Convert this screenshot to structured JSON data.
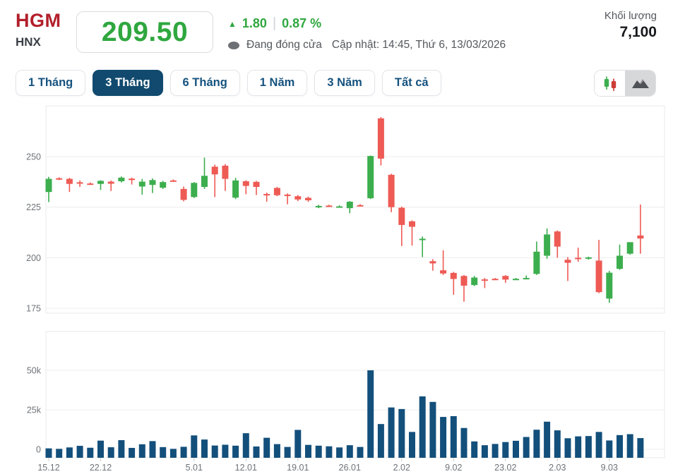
{
  "header": {
    "symbol": "HGM",
    "exchange": "HNX",
    "price": "209.50",
    "change_arrow": "▲",
    "change_value": "1.80",
    "change_divider": "|",
    "change_percent": "0.87 %",
    "market_status": "Đang đóng cửa",
    "updated": "Cập nhật: 14:45, Thứ 6, 13/03/2026",
    "volume_label": "Khối lượng",
    "volume_value": "7,100"
  },
  "range_tabs": {
    "items": [
      {
        "label": "1 Tháng",
        "active": false
      },
      {
        "label": "3 Tháng",
        "active": true
      },
      {
        "label": "6 Tháng",
        "active": false
      },
      {
        "label": "1 Năm",
        "active": false
      },
      {
        "label": "3 Năm",
        "active": false
      },
      {
        "label": "Tất cả",
        "active": false
      }
    ]
  },
  "chart_toggle": {
    "options": [
      "candlestick",
      "area"
    ],
    "highlighted": "area",
    "icons": [
      "candlestick-icon",
      "area-chart-icon"
    ]
  },
  "colors": {
    "up_green": "#3cae4e",
    "down_red": "#ee5a54",
    "volume_bar": "#134f7b",
    "accent_navy": "#114a6e",
    "symbol_red": "#b21f2b",
    "price_green": "#2fa73f",
    "muted_text": "#53575c",
    "grid_line": "#eeeeee",
    "plot_border": "#e8e8e8"
  },
  "chart_data": {
    "type": "candlestick",
    "title": "",
    "price_axis": {
      "tick_values": [
        250,
        225,
        200,
        175
      ],
      "tick_labels": [
        "250",
        "225",
        "200",
        "175"
      ],
      "range_shown": [
        177,
        270
      ]
    },
    "volume_axis": {
      "tick_values": [
        50000,
        25000,
        0
      ],
      "tick_labels": [
        "50k",
        "25k",
        "0"
      ]
    },
    "x_tick_labels": [
      "15.12",
      "22.12",
      "5.01",
      "12.01",
      "19.01",
      "26.01",
      "2.02",
      "9.02",
      "23.02",
      "2.03",
      "9.03"
    ],
    "x_tick_indices": [
      0,
      5,
      14,
      19,
      24,
      29,
      34,
      39,
      44,
      49,
      54
    ],
    "grid": true,
    "legend": false,
    "candles_ohlc": [
      [
        232.5,
        240,
        227.5,
        239
      ],
      [
        239.3,
        239.8,
        238.4,
        238.9
      ],
      [
        239,
        239.5,
        232.5,
        236.5
      ],
      [
        237.3,
        238.2,
        235,
        236.8
      ],
      [
        236.7,
        237.2,
        236,
        236.4
      ],
      [
        236.5,
        238.3,
        233.5,
        238
      ],
      [
        237.6,
        238.2,
        233,
        236.6
      ],
      [
        237.8,
        240.2,
        237.2,
        239.6
      ],
      [
        239.1,
        239.6,
        236.2,
        238.8
      ],
      [
        235.2,
        239,
        231.2,
        237.6
      ],
      [
        236,
        239.2,
        232,
        238.4
      ],
      [
        234.6,
        238,
        234,
        237.4
      ],
      [
        238.2,
        238.7,
        237.6,
        237.9
      ],
      [
        234,
        235.2,
        227.9,
        228.6
      ],
      [
        230,
        237.4,
        229.5,
        237
      ],
      [
        235,
        249.5,
        234,
        240.5
      ],
      [
        245,
        246,
        230,
        241.2
      ],
      [
        245.5,
        246.3,
        233,
        239
      ],
      [
        229.7,
        239.5,
        229,
        238.2
      ],
      [
        237.8,
        238.3,
        231.4,
        235.5
      ],
      [
        237.5,
        238,
        231,
        235
      ],
      [
        231.5,
        232.2,
        227.7,
        231.2
      ],
      [
        234.5,
        235,
        230.4,
        230.9
      ],
      [
        231.2,
        231.8,
        226.4,
        230.8
      ],
      [
        230.4,
        231,
        228,
        228.8
      ],
      [
        229.6,
        230.2,
        227.6,
        228.4
      ],
      [
        225.2,
        226.2,
        224.5,
        225.6
      ],
      [
        225.8,
        226.2,
        225.2,
        225.5
      ],
      [
        225.3,
        225.9,
        224.8,
        225.4
      ],
      [
        224.5,
        228,
        222,
        227.7
      ],
      [
        226,
        226.5,
        225.3,
        225.8
      ],
      [
        229.4,
        250.5,
        229,
        250.3
      ],
      [
        268.9,
        269.5,
        245.6,
        249
      ],
      [
        241,
        241.5,
        222.5,
        225
      ],
      [
        224.7,
        225.3,
        205.8,
        216.2
      ],
      [
        218,
        218.5,
        206,
        215.3
      ],
      [
        209,
        210.5,
        200.3,
        209.4
      ],
      [
        198.3,
        199.3,
        193.6,
        197.2
      ],
      [
        193.8,
        203.7,
        191.5,
        192.2
      ],
      [
        192.5,
        193,
        181.7,
        189.5
      ],
      [
        191,
        191.5,
        178.3,
        186.2
      ],
      [
        186.5,
        191,
        186,
        190.2
      ],
      [
        189.3,
        190,
        185,
        189
      ],
      [
        189.6,
        190,
        189.2,
        189.5
      ],
      [
        191,
        191.4,
        187.6,
        189.2
      ],
      [
        189.3,
        190,
        189,
        189.6
      ],
      [
        189.7,
        191.2,
        189.3,
        190
      ],
      [
        192,
        208,
        191.5,
        203
      ],
      [
        201,
        214.5,
        199.5,
        211.5
      ],
      [
        213,
        213.5,
        200,
        205.5
      ],
      [
        199,
        200.3,
        188.5,
        197.5
      ],
      [
        200,
        205,
        198,
        199.7
      ],
      [
        199.8,
        200.5,
        199,
        200.2
      ],
      [
        198.6,
        208.8,
        182.5,
        183
      ],
      [
        179.8,
        193.5,
        177.7,
        192.6
      ],
      [
        194.5,
        206.5,
        194,
        201
      ],
      [
        202,
        207.7,
        201.5,
        207.7
      ],
      [
        211,
        226.3,
        202,
        209.5
      ]
    ],
    "volumes": [
      600,
      300,
      1200,
      2200,
      1000,
      5500,
      1300,
      5800,
      900,
      3200,
      5200,
      1400,
      300,
      1600,
      8800,
      6200,
      2400,
      2900,
      2300,
      10200,
      1800,
      7300,
      3300,
      1500,
      12300,
      2800,
      2300,
      1900,
      1200,
      2600,
      1500,
      50000,
      16000,
      26500,
      25500,
      11000,
      33500,
      30000,
      20500,
      21000,
      13500,
      5000,
      2600,
      3400,
      4600,
      5400,
      7800,
      12400,
      17500,
      12000,
      7000,
      8200,
      8400,
      11000,
      5600,
      9000,
      9600,
      7100
    ]
  }
}
